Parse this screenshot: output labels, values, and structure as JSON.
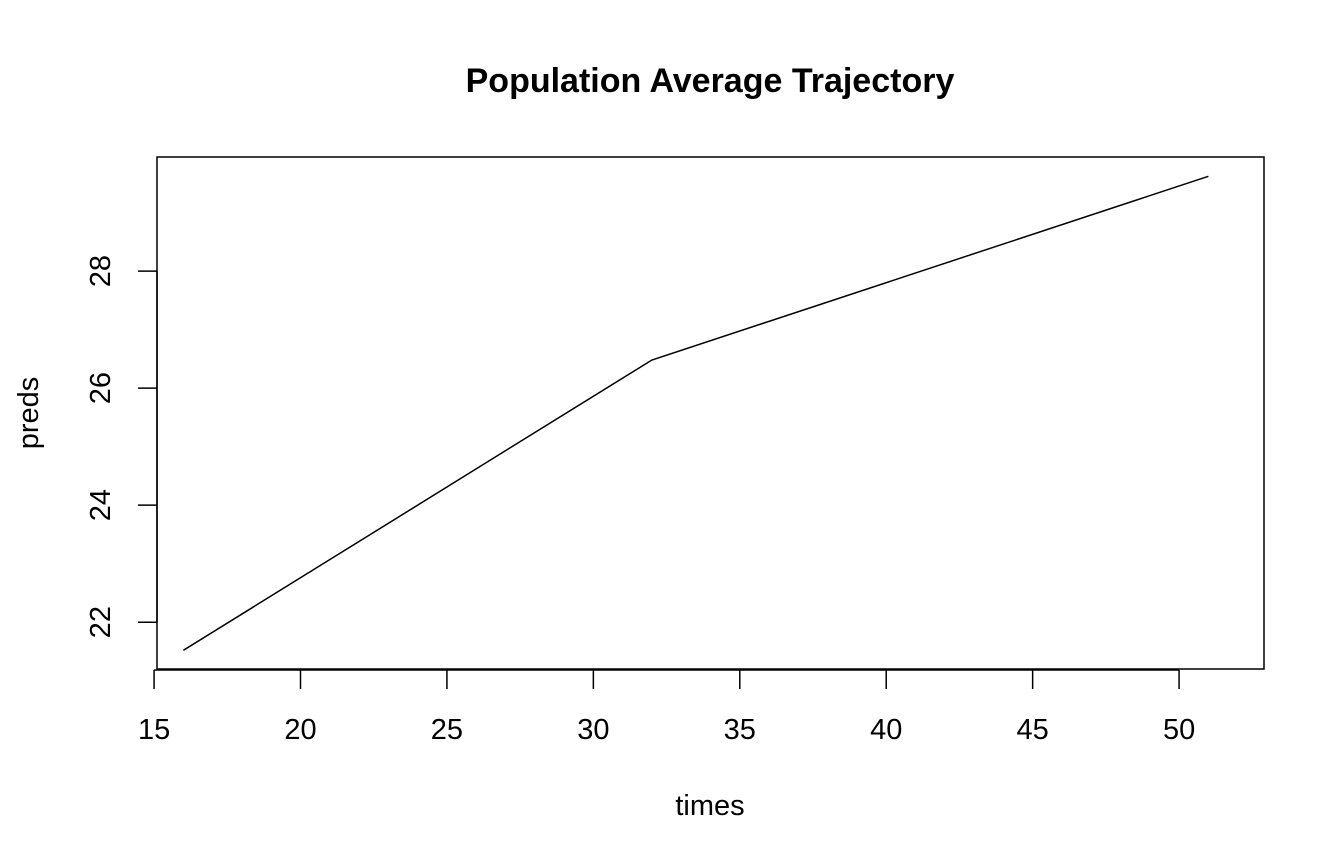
{
  "chart_data": {
    "type": "line",
    "title": "Population Average Trajectory",
    "xlabel": "times",
    "ylabel": "preds",
    "x": [
      16,
      32,
      51
    ],
    "series": [
      {
        "values": [
          21.52,
          26.48,
          29.62
        ]
      }
    ],
    "xlim": [
      15.1,
      52.9
    ],
    "ylim": [
      21.2,
      29.95
    ],
    "xticks": [
      15,
      20,
      25,
      30,
      35,
      40,
      45,
      50
    ],
    "yticks": [
      22,
      24,
      26,
      28
    ],
    "grid": false,
    "legend": "none",
    "line_color": "#000000"
  }
}
